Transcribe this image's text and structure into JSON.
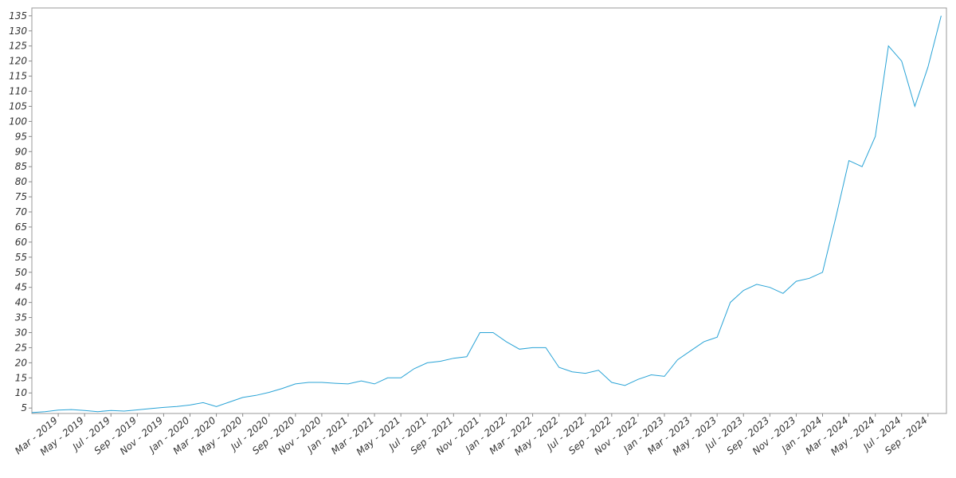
{
  "chart_data": {
    "type": "line",
    "categories": [
      null,
      null,
      "Mar - 2019",
      null,
      "May - 2019",
      null,
      "Jul - 2019",
      null,
      "Sep - 2019",
      null,
      "Nov - 2019",
      null,
      "Jan - 2020",
      null,
      "Mar - 2020",
      null,
      "May - 2020",
      null,
      "Jul - 2020",
      null,
      "Sep - 2020",
      null,
      "Nov - 2020",
      null,
      "Jan - 2021",
      null,
      "Mar - 2021",
      null,
      "May - 2021",
      null,
      "Jul - 2021",
      null,
      "Sep - 2021",
      null,
      "Nov - 2021",
      null,
      "Jan - 2022",
      null,
      "Mar - 2022",
      null,
      "May - 2022",
      null,
      "Jul - 2022",
      null,
      "Sep - 2022",
      null,
      "Nov - 2022",
      null,
      "Jan - 2023",
      null,
      "Mar - 2023",
      null,
      "May - 2023",
      null,
      "Jul - 2023",
      null,
      "Sep - 2023",
      null,
      "Nov - 2023",
      null,
      "Jan - 2024",
      null,
      "Mar - 2024",
      null,
      "May - 2024",
      null,
      "Jul - 2024",
      null,
      "Sep - 2024",
      null
    ],
    "values": [
      3.5,
      3.8,
      4.3,
      4.5,
      4.2,
      3.8,
      4.2,
      4.0,
      4.4,
      4.8,
      5.2,
      5.5,
      6.0,
      6.8,
      5.5,
      7.0,
      8.5,
      9.2,
      10.2,
      11.5,
      13.0,
      13.5,
      13.5,
      13.2,
      13.0,
      14.0,
      13.0,
      15.0,
      15.0,
      18.0,
      20.0,
      20.5,
      21.5,
      22.0,
      30.0,
      30.0,
      27.0,
      24.5,
      25.0,
      25.0,
      18.5,
      17.0,
      16.5,
      17.5,
      13.5,
      12.5,
      14.5,
      16.0,
      15.5,
      21.0,
      24.0,
      27.0,
      28.5,
      40.0,
      44.0,
      46.0,
      45.0,
      43.0,
      47.0,
      48.0,
      50.0,
      68.0,
      87.0,
      85.0,
      95.0,
      125.0,
      120.0,
      105.0,
      118.0,
      135.0
    ],
    "color": "#29a3d6",
    "ylim": [
      3.2,
      137.6
    ],
    "yticks": [
      5,
      10,
      15,
      20,
      25,
      30,
      35,
      40,
      45,
      50,
      55,
      60,
      65,
      70,
      75,
      80,
      85,
      90,
      95,
      100,
      105,
      110,
      115,
      120,
      125,
      130,
      135
    ]
  }
}
